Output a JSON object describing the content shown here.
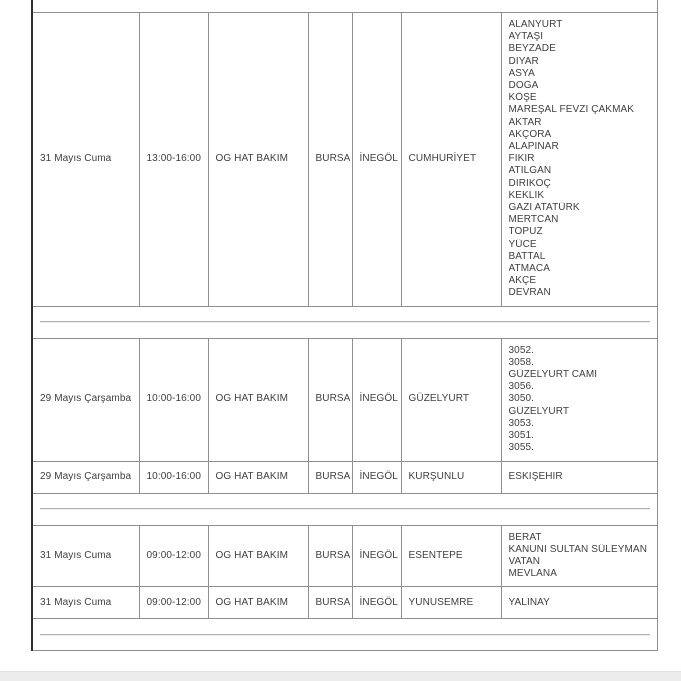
{
  "colors": {
    "grid_border": "#8f8f8f",
    "outer_left_border": "#2f2f2f",
    "text": "#3f3f3f",
    "separator_line": "#b3b3b3",
    "footer_bar": "#ececec",
    "page_background": "#ffffff"
  },
  "table": {
    "groups": [
      {
        "rows": [
          {
            "date": "31 Mayıs Cuma",
            "time": "13:00-16:00",
            "work_type": "OG HAT BAKIM",
            "province": "BURSA",
            "district": "İNEGÖL",
            "neighborhood": "CUMHURİYET",
            "streets": [
              "ALANYURT",
              "AYTAŞI",
              "BEYZADE",
              "DİYAR",
              "ASYA",
              "DOĞA",
              "KÖŞE",
              "MAREŞAL FEVZİ ÇAKMAK",
              "AKTAR",
              "AKÇORA",
              "ALAPINAR",
              "FİKİR",
              "ATILGAN",
              "DİRİKOÇ",
              "KEKLİK",
              "GAZİ ATATÜRK",
              "MERTCAN",
              "TOPUZ",
              "YÜCE",
              "BATTAL",
              "ATMACA",
              "AKÇE",
              "DEVRAN"
            ]
          }
        ]
      },
      {
        "rows": [
          {
            "date": "29 Mayıs Çarşamba",
            "time": "10:00-16:00",
            "work_type": "OG HAT BAKIM",
            "province": "BURSA",
            "district": "İNEGÖL",
            "neighborhood": "GÜZELYURT",
            "streets": [
              "3052.",
              "3058.",
              "GÜZELYURT CAMİ",
              "3056.",
              "3050.",
              "GÜZELYURT",
              "3053.",
              "3051.",
              "3055."
            ]
          },
          {
            "date": "29 Mayıs Çarşamba",
            "time": "10:00-16:00",
            "work_type": "OG HAT BAKIM",
            "province": "BURSA",
            "district": "İNEGÖL",
            "neighborhood": "KURŞUNLU",
            "streets": [
              "ESKİŞEHİR"
            ]
          }
        ]
      },
      {
        "rows": [
          {
            "date": "31 Mayıs Cuma",
            "time": "09:00-12:00",
            "work_type": "OG HAT BAKIM",
            "province": "BURSA",
            "district": "İNEGÖL",
            "neighborhood": "ESENTEPE",
            "streets": [
              "BERAT",
              "KANUNİ SULTAN SÜLEYMAN",
              "VATAN",
              "MEVLANA"
            ]
          },
          {
            "date": "31 Mayıs Cuma",
            "time": "09:00-12:00",
            "work_type": "OG HAT BAKIM",
            "province": "BURSA",
            "district": "İNEGÖL",
            "neighborhood": "YUNUSEMRE",
            "streets": [
              "YALINAY"
            ]
          }
        ]
      }
    ]
  }
}
